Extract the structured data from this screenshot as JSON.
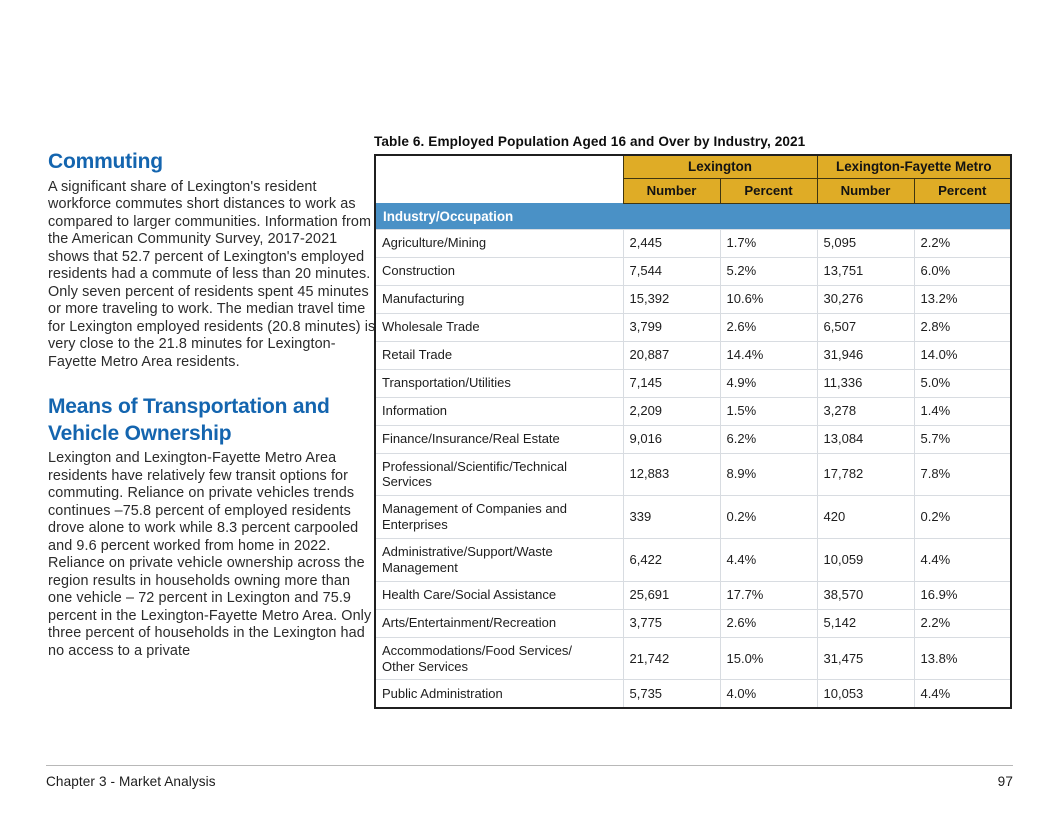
{
  "left_column": {
    "sections": [
      {
        "heading": "Commuting",
        "body": "A significant share of Lexington's resident workforce commutes short distances to work as compared to larger communities. Information from the American Community Survey, 2017-2021 shows that 52.7 percent of Lexington's employed residents had a commute of less than 20 minutes. Only seven percent of residents spent 45 minutes or more traveling to work. The median travel time for Lexington employed residents (20.8 minutes) is very close to the 21.8 minutes for Lexington-Fayette Metro Area residents."
      },
      {
        "heading": "Means of Transportation and Vehicle Ownership",
        "body": "Lexington and Lexington-Fayette Metro Area residents have relatively few transit options for commuting. Reliance on private vehicles trends continues –75.8 percent of employed residents drove alone to work while 8.3 percent carpooled and 9.6 percent worked from home in 2022. Reliance on private vehicle ownership across the region results in households owning more than one vehicle – 72 percent in Lexington and 75.9 percent in the Lexington-Fayette Metro Area. Only three percent of households in the Lexington had no access to a private"
      }
    ]
  },
  "table": {
    "title": "Table 6. Employed Population Aged 16 and Over by Industry, 2021",
    "group_headers": [
      "Lexington",
      "Lexington-Fayette Metro"
    ],
    "sub_headers": [
      "Number",
      "Percent",
      "Number",
      "Percent"
    ],
    "section_label": "Industry/Occupation",
    "rows": [
      {
        "label": "Agriculture/Mining",
        "values": [
          "2,445",
          "1.7%",
          "5,095",
          "2.2%"
        ]
      },
      {
        "label": "Construction",
        "values": [
          "7,544",
          "5.2%",
          "13,751",
          "6.0%"
        ]
      },
      {
        "label": "Manufacturing",
        "values": [
          "15,392",
          "10.6%",
          "30,276",
          "13.2%"
        ]
      },
      {
        "label": "Wholesale Trade",
        "values": [
          "3,799",
          "2.6%",
          "6,507",
          "2.8%"
        ]
      },
      {
        "label": "Retail Trade",
        "values": [
          "20,887",
          "14.4%",
          "31,946",
          "14.0%"
        ]
      },
      {
        "label": "Transportation/Utilities",
        "values": [
          "7,145",
          "4.9%",
          "11,336",
          "5.0%"
        ]
      },
      {
        "label": "Information",
        "values": [
          "2,209",
          "1.5%",
          "3,278",
          "1.4%"
        ]
      },
      {
        "label": "Finance/Insurance/Real Estate",
        "values": [
          "9,016",
          "6.2%",
          "13,084",
          "5.7%"
        ]
      },
      {
        "label": "Professional/Scientific/Technical\nServices",
        "values": [
          "12,883",
          "8.9%",
          "17,782",
          "7.8%"
        ]
      },
      {
        "label": "Management of Companies and\nEnterprises",
        "values": [
          "339",
          "0.2%",
          "420",
          "0.2%"
        ]
      },
      {
        "label": "Administrative/Support/Waste\nManagement",
        "values": [
          "6,422",
          "4.4%",
          "10,059",
          "4.4%"
        ]
      },
      {
        "label": "Health Care/Social Assistance",
        "values": [
          "25,691",
          "17.7%",
          "38,570",
          "16.9%"
        ]
      },
      {
        "label": "Arts/Entertainment/Recreation",
        "values": [
          "3,775",
          "2.6%",
          "5,142",
          "2.2%"
        ]
      },
      {
        "label": "Accommodations/Food Services/\nOther Services",
        "values": [
          "21,742",
          "15.0%",
          "31,475",
          "13.8%"
        ]
      },
      {
        "label": "Public Administration",
        "values": [
          "5,735",
          "4.0%",
          "10,053",
          "4.4%"
        ]
      }
    ]
  },
  "footer": {
    "left": "Chapter 3 - Market Analysis",
    "page_number": "97"
  },
  "colors": {
    "gold_header": "#DFAC26",
    "blue_section_row": "#4A91C6",
    "heading_blue": "#1465AF"
  }
}
